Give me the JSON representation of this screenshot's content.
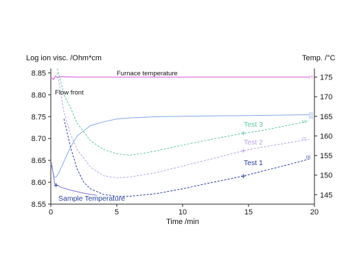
{
  "chart_data": {
    "type": "line",
    "left_axis_label": "Log ion visc. /Ohm*cm",
    "right_axis_label": "Temp. /°C",
    "xlabel": "Time /min",
    "xlim": [
      0,
      20
    ],
    "x_ticks": [
      "0",
      "5",
      "10",
      "15",
      "20"
    ],
    "y_left_lim": [
      8.55,
      8.86
    ],
    "y_left_ticks": [
      "8.55",
      "8.60",
      "8.65",
      "8.70",
      "8.75",
      "8.80",
      "8.85"
    ],
    "y_right_lim": [
      142.6,
      177.2
    ],
    "y_right_ticks": [
      "145",
      "150",
      "155",
      "160",
      "165",
      "170",
      "175"
    ],
    "annotations": {
      "furnace": "Furnace temperature",
      "flow_front": "Flow front",
      "test3": "Test 3",
      "test2": "Test 2",
      "test1": "Test 1",
      "sample": "Sample Temperature"
    },
    "end_markers": {
      "furnace": "[4]",
      "test3": "[1]",
      "test2": "[2]",
      "test1": "[3]",
      "sample_a": "[5]",
      "sample_b": "[6]"
    },
    "series": [
      {
        "key": "furnace",
        "axis": "right",
        "color": "#e07be0",
        "dash": "",
        "x": [
          0,
          0.2,
          0.35,
          0.5,
          0.8,
          2,
          5,
          10,
          15,
          19.6
        ],
        "y": [
          175,
          174.4,
          175.3,
          174.9,
          175.1,
          175,
          175,
          175,
          175,
          175
        ]
      },
      {
        "key": "sample",
        "axis": "right",
        "color": "#7fa7e6",
        "dash": "",
        "x": [
          0,
          0.15,
          0.25,
          0.4,
          0.6,
          1,
          1.5,
          2,
          3,
          4,
          5,
          6,
          8,
          10,
          12,
          15,
          19.6
        ],
        "y": [
          153,
          151,
          149.5,
          149.5,
          150.5,
          153.5,
          157.2,
          160,
          162.6,
          163.6,
          164.3,
          164.6,
          164.9,
          165,
          165.1,
          165.2,
          165.4
        ]
      },
      {
        "key": "test3",
        "axis": "left",
        "color": "#5cc9a4",
        "dash": "3,2",
        "x": [
          0.5,
          1,
          1.5,
          2,
          3,
          4,
          5,
          6,
          7,
          8,
          10,
          12,
          14.6,
          16,
          18,
          19.6
        ],
        "y": [
          8.86,
          8.8,
          8.77,
          8.735,
          8.695,
          8.675,
          8.665,
          8.662,
          8.666,
          8.672,
          8.685,
          8.697,
          8.712,
          8.718,
          8.73,
          8.74
        ]
      },
      {
        "key": "test2",
        "axis": "left",
        "color": "#b5a3e3",
        "dash": "3,2",
        "x": [
          0.5,
          1,
          1.5,
          2,
          3,
          4,
          5,
          6,
          8,
          10,
          12,
          14.6,
          16,
          18,
          19.6
        ],
        "y": [
          8.85,
          8.76,
          8.71,
          8.675,
          8.635,
          8.615,
          8.61,
          8.612,
          8.622,
          8.637,
          8.652,
          8.672,
          8.68,
          8.69,
          8.698
        ]
      },
      {
        "key": "test1",
        "axis": "left",
        "color": "#243d9e",
        "dash": "3,2",
        "x": [
          1,
          1.5,
          2,
          2.5,
          3,
          4,
          5,
          6,
          8,
          10,
          12,
          14.6,
          16,
          18,
          19.6
        ],
        "y": [
          8.745,
          8.68,
          8.63,
          8.6,
          8.585,
          8.572,
          8.568,
          8.568,
          8.574,
          8.585,
          8.598,
          8.614,
          8.625,
          8.64,
          8.653
        ]
      },
      {
        "key": "flowfront",
        "axis": "left",
        "color": "#7a6fc9",
        "dash": "",
        "x": [
          0.05,
          0.3,
          0.8,
          1.5,
          2.5,
          3.5
        ],
        "y": [
          8.645,
          8.596,
          8.588,
          8.582,
          8.575,
          8.57
        ]
      }
    ],
    "cross_markers": [
      {
        "axis": "left",
        "x": 14.6,
        "y": 8.712,
        "color": "#5cc9a4"
      },
      {
        "axis": "left",
        "x": 14.6,
        "y": 8.672,
        "color": "#b5a3e3"
      },
      {
        "axis": "left",
        "x": 14.6,
        "y": 8.614,
        "color": "#243d9e"
      },
      {
        "axis": "left",
        "x": 0.4,
        "y": 8.593,
        "color": "#243d9e"
      }
    ]
  }
}
